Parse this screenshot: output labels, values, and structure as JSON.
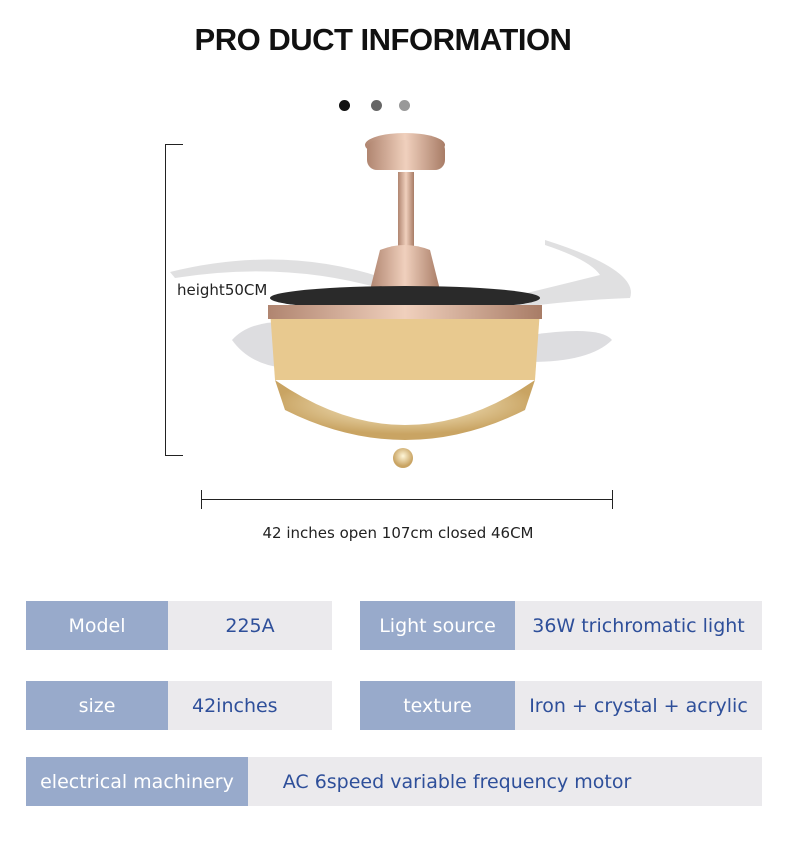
{
  "title": "PRO DUCT INFORMATION",
  "carousel_dots": [
    "#111111",
    "#666666",
    "#999999"
  ],
  "dimensions": {
    "height": "height50CM",
    "width": "42 inches open 107cm closed 46CM"
  },
  "specs": [
    {
      "label": "Model",
      "value": "225A"
    },
    {
      "label": "Light source",
      "value": "36W trichromatic light"
    },
    {
      "label": "size",
      "value": "42inches"
    },
    {
      "label": "texture",
      "value": "Iron + crystal + acrylic"
    },
    {
      "label": "electrical machinery",
      "value": "AC 6speed variable frequency motor"
    }
  ],
  "colors": {
    "label_bg": "#98aacb",
    "value_bg": "#ebeaed",
    "value_text": "#2e4f9a"
  }
}
